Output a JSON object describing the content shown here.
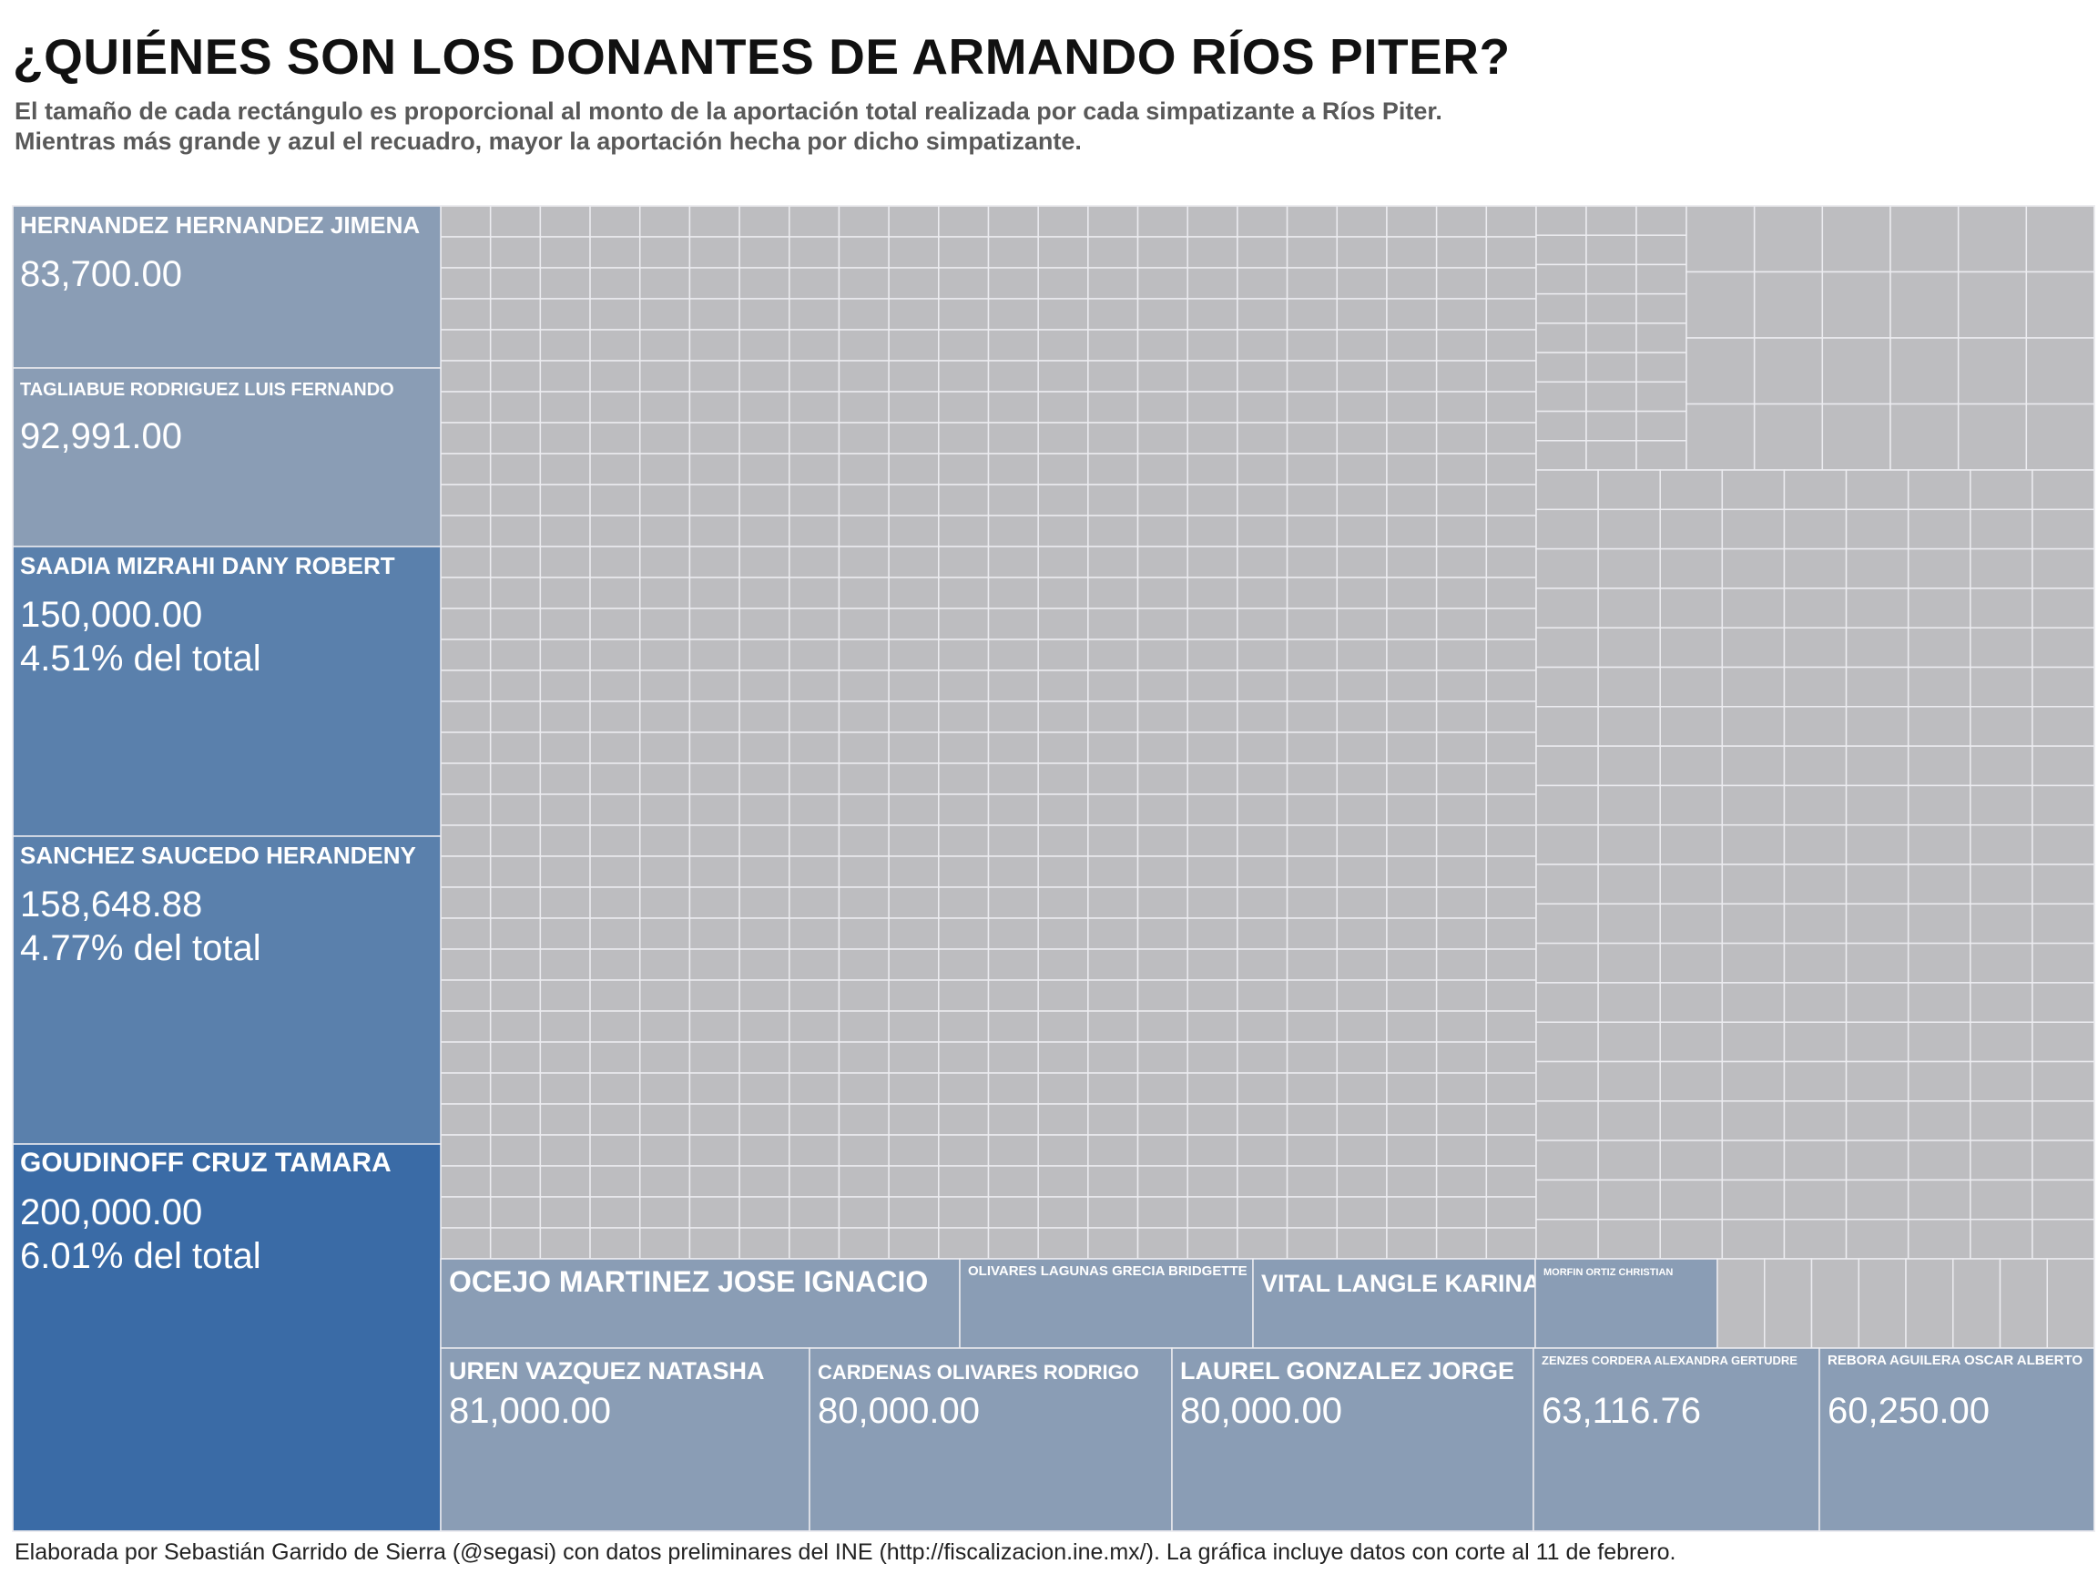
{
  "title": "¿QUIÉNES SON LOS DONANTES DE ARMANDO RÍOS PITER?",
  "subtitle_line1": "El tamaño de cada rectángulo es proporcional al monto de la aportación total realizada por cada simpatizante a Ríos Piter.",
  "subtitle_line2": "Mientras más grande y azul el recuadro, mayor la aportación hecha por dicho simpatizante.",
  "caption": "Elaborada por Sebastián Garrido de Sierra (@segasi) con datos preliminares del INE (http://fiscalizacion.ine.mx/). La gráfica incluye datos con corte al 11 de febrero.",
  "colors": {
    "top_donor": "#3a6ba6",
    "large_donor": "#5a80ac",
    "mid_donor": "#8a9db5",
    "small_donor": "#bdbdc0",
    "cell_border": "#ececf0",
    "label_text": "#ffffff"
  },
  "chart_data": {
    "type": "treemap",
    "value_unit": "MXN",
    "labeled_donors": [
      {
        "name": "GOUDINOFF CRUZ  TAMARA",
        "amount": 200000.0,
        "amount_label": "200,000.00",
        "share_label": "6.01% del total",
        "share_pct": 6.01
      },
      {
        "name": "SANCHEZ SAUCEDO  HERANDENY",
        "amount": 158648.88,
        "amount_label": "158,648.88",
        "share_label": "4.77% del total",
        "share_pct": 4.77
      },
      {
        "name": "SAADIA MIZRAHI  DANY ROBERT",
        "amount": 150000.0,
        "amount_label": "150,000.00",
        "share_label": "4.51% del total",
        "share_pct": 4.51
      },
      {
        "name": "TAGLIABUE RODRIGUEZ  LUIS FERNANDO",
        "amount": 92991.0,
        "amount_label": "92,991.00"
      },
      {
        "name": "HERNANDEZ HERNANDEZ  JIMENA",
        "amount": 83700.0,
        "amount_label": "83,700.00"
      },
      {
        "name": "UREN VAZQUEZ  NATASHA",
        "amount": 81000.0,
        "amount_label": "81,000.00"
      },
      {
        "name": "CARDENAS OLIVARES  RODRIGO",
        "amount": 80000.0,
        "amount_label": "80,000.00"
      },
      {
        "name": "LAUREL GONZALEZ  JORGE",
        "amount": 80000.0,
        "amount_label": "80,000.00"
      },
      {
        "name": "ZENZES CORDERA  ALEXANDRA GERTUDRE",
        "amount": 63116.76,
        "amount_label": "63,116.76"
      },
      {
        "name": "REBORA AGUILERA  OSCAR ALBERTO",
        "amount": 60250.0,
        "amount_label": "60,250.00"
      },
      {
        "name": "OCEJO MARTINEZ  JOSE IGNACIO"
      },
      {
        "name": "OLIVARES LAGUNAS  GRECIA BRIDGETTE"
      },
      {
        "name": "VITAL LANGLE  KARINA"
      },
      {
        "name": "MORFIN ORTIZ  CHRISTIAN"
      }
    ],
    "unlabeled_small_donors": "many"
  }
}
